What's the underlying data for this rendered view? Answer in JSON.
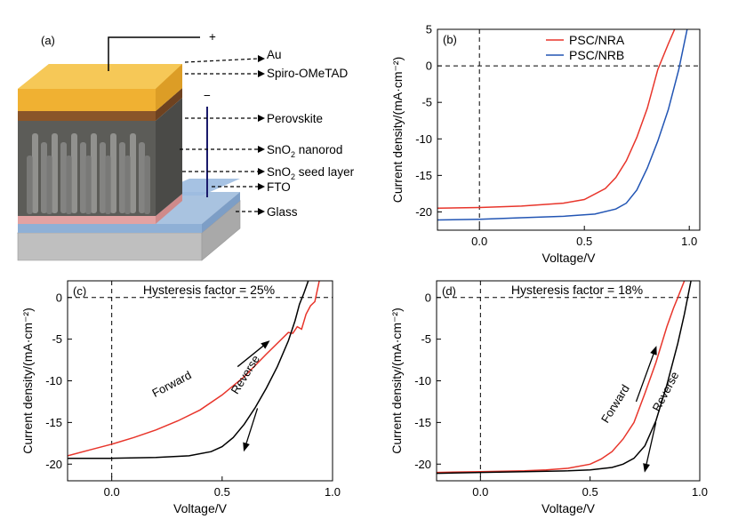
{
  "diagram": {
    "panel_label": "(a)",
    "plus": "+",
    "minus": "−",
    "layers": [
      {
        "name": "Au",
        "color": "#f2b93b"
      },
      {
        "name": "Spiro-OMeTAD",
        "color": "#8b5a2b"
      },
      {
        "name": "Perovskite",
        "color": "#5b5b58"
      },
      {
        "name": "SnO2 nanorod",
        "color": "#8c8c8c"
      },
      {
        "name": "SnO2 seed layer",
        "color": "#d98c8c"
      },
      {
        "name": "FTO",
        "color": "#9bb8d8"
      },
      {
        "name": "Glass",
        "color": "#c8c8c8"
      }
    ],
    "labels": {
      "au": "Au",
      "spiro": "Spiro-OMeTAD",
      "perovskite": "Perovskite",
      "nanorod_pre": "SnO",
      "nanorod_sub": "2",
      "nanorod_post": " nanorod",
      "seed_pre": "SnO",
      "seed_sub": "2",
      "seed_post": " seed layer",
      "fto": "FTO",
      "glass": "Glass"
    }
  },
  "colors": {
    "red": "#e8352b",
    "blue": "#2255b4",
    "black": "#000000"
  },
  "chart_data": [
    {
      "id": "b",
      "type": "line",
      "panel_label": "(b)",
      "xlabel": "Voltage/V",
      "ylabel": "Current density/(mA·cm⁻²)",
      "xlim": [
        -0.2,
        1.05
      ],
      "ylim": [
        -22.5,
        5
      ],
      "xticks": [
        {
          "v": 0.0,
          "label": "0.0"
        },
        {
          "v": 0.5,
          "label": "0.5"
        },
        {
          "v": 1.0,
          "label": "1.0"
        }
      ],
      "yticks": [
        {
          "v": 5,
          "label": "5"
        },
        {
          "v": 0,
          "label": "0"
        },
        {
          "v": -5,
          "label": "-5"
        },
        {
          "v": -10,
          "label": "-10"
        },
        {
          "v": -15,
          "label": "-15"
        },
        {
          "v": -20,
          "label": "-20"
        }
      ],
      "legend": [
        "PSC/NRA",
        "PSC/NRB"
      ],
      "series": [
        {
          "name": "PSC/NRA",
          "color": "#e8352b",
          "x": [
            -0.2,
            0.0,
            0.2,
            0.4,
            0.5,
            0.6,
            0.65,
            0.7,
            0.75,
            0.8,
            0.85,
            0.9,
            0.93
          ],
          "y": [
            -19.5,
            -19.4,
            -19.2,
            -18.8,
            -18.3,
            -16.8,
            -15.3,
            -13.0,
            -9.8,
            -5.8,
            -0.5,
            3.0,
            5.0
          ]
        },
        {
          "name": "PSC/NRB",
          "color": "#2255b4",
          "x": [
            -0.2,
            0.0,
            0.2,
            0.4,
            0.55,
            0.65,
            0.7,
            0.75,
            0.8,
            0.85,
            0.9,
            0.95,
            0.99
          ],
          "y": [
            -21.1,
            -21.0,
            -20.8,
            -20.6,
            -20.3,
            -19.6,
            -18.8,
            -17.0,
            -14.0,
            -10.3,
            -6.0,
            -0.5,
            5.0
          ]
        }
      ],
      "annotations": []
    },
    {
      "id": "c",
      "type": "line",
      "panel_label": "(c)",
      "xlabel": "Voltage/V",
      "ylabel": "Current density/(mA·cm⁻²)",
      "xlim": [
        -0.2,
        1.0
      ],
      "ylim": [
        -22,
        2
      ],
      "xticks": [
        {
          "v": 0.0,
          "label": "0.0"
        },
        {
          "v": 0.5,
          "label": "0.5"
        },
        {
          "v": 1.0,
          "label": "1.0"
        }
      ],
      "yticks": [
        {
          "v": 0,
          "label": "0"
        },
        {
          "v": -5,
          "label": "-5"
        },
        {
          "v": -10,
          "label": "-10"
        },
        {
          "v": -15,
          "label": "-15"
        },
        {
          "v": -20,
          "label": "-20"
        }
      ],
      "title": "Hysteresis factor = 25%",
      "series": [
        {
          "name": "Forward",
          "color": "#e8352b",
          "x": [
            -0.2,
            -0.1,
            0.0,
            0.1,
            0.2,
            0.3,
            0.4,
            0.5,
            0.6,
            0.7,
            0.8,
            0.82,
            0.84,
            0.86,
            0.88,
            0.9,
            0.92,
            0.94
          ],
          "y": [
            -19.0,
            -18.3,
            -17.6,
            -16.8,
            -15.9,
            -14.8,
            -13.5,
            -11.7,
            -9.5,
            -6.8,
            -4.2,
            -4.3,
            -3.5,
            -3.8,
            -2.0,
            -1.0,
            -0.5,
            2.0
          ]
        },
        {
          "name": "Reverse",
          "color": "#000000",
          "x": [
            -0.2,
            0.0,
            0.2,
            0.35,
            0.45,
            0.5,
            0.55,
            0.6,
            0.65,
            0.7,
            0.75,
            0.8,
            0.83,
            0.85,
            0.87,
            0.89
          ],
          "y": [
            -19.3,
            -19.3,
            -19.2,
            -19.0,
            -18.5,
            -17.9,
            -16.8,
            -15.2,
            -13.2,
            -10.9,
            -8.3,
            -5.2,
            -2.8,
            -0.8,
            0.5,
            2.0
          ]
        }
      ],
      "annotations": [
        {
          "text": "Forward",
          "x": 0.28,
          "y": -10.8,
          "angle": -28
        },
        {
          "text": "Reverse",
          "x": 0.62,
          "y": -9.5,
          "angle": -58
        }
      ],
      "arrows": [
        {
          "x1": 0.57,
          "y1": -8.3,
          "x2": 0.71,
          "y2": -5.3,
          "color": "#000000"
        },
        {
          "x1": 0.66,
          "y1": -13.3,
          "x2": 0.6,
          "y2": -18.3,
          "color": "#000000"
        }
      ]
    },
    {
      "id": "d",
      "type": "line",
      "panel_label": "(d)",
      "xlabel": "Voltage/V",
      "ylabel": "Current density/(mA·cm⁻²)",
      "xlim": [
        -0.2,
        1.0
      ],
      "ylim": [
        -22,
        2
      ],
      "xticks": [
        {
          "v": 0.0,
          "label": "0.0"
        },
        {
          "v": 0.5,
          "label": "0.5"
        },
        {
          "v": 1.0,
          "label": "1.0"
        }
      ],
      "yticks": [
        {
          "v": 0,
          "label": "0"
        },
        {
          "v": -5,
          "label": "-5"
        },
        {
          "v": -10,
          "label": "-10"
        },
        {
          "v": -15,
          "label": "-15"
        },
        {
          "v": -20,
          "label": "-20"
        }
      ],
      "title": "Hysteresis factor = 18%",
      "series": [
        {
          "name": "Forward",
          "color": "#e8352b",
          "x": [
            -0.2,
            0.0,
            0.2,
            0.3,
            0.4,
            0.5,
            0.55,
            0.6,
            0.65,
            0.7,
            0.75,
            0.8,
            0.85,
            0.88,
            0.9,
            0.93
          ],
          "y": [
            -21.0,
            -20.9,
            -20.8,
            -20.7,
            -20.5,
            -20.0,
            -19.4,
            -18.5,
            -17.0,
            -15.0,
            -11.5,
            -7.8,
            -3.5,
            -1.3,
            0.0,
            2.0
          ]
        },
        {
          "name": "Reverse",
          "color": "#000000",
          "x": [
            -0.2,
            0.0,
            0.2,
            0.4,
            0.5,
            0.6,
            0.65,
            0.7,
            0.75,
            0.8,
            0.85,
            0.9,
            0.93,
            0.96
          ],
          "y": [
            -21.1,
            -21.0,
            -20.9,
            -20.8,
            -20.7,
            -20.4,
            -20.0,
            -19.3,
            -17.8,
            -14.8,
            -10.5,
            -5.5,
            -2.0,
            2.0
          ]
        }
      ],
      "annotations": [
        {
          "text": "Forward",
          "x": 0.63,
          "y": -13.0,
          "angle": -58
        },
        {
          "text": "Reverse",
          "x": 0.86,
          "y": -11.5,
          "angle": -62
        }
      ],
      "arrows": [
        {
          "x1": 0.71,
          "y1": -12.5,
          "x2": 0.8,
          "y2": -6.0,
          "color": "#000000"
        },
        {
          "x1": 0.8,
          "y1": -15.0,
          "x2": 0.75,
          "y2": -20.8,
          "color": "#000000"
        }
      ]
    }
  ]
}
